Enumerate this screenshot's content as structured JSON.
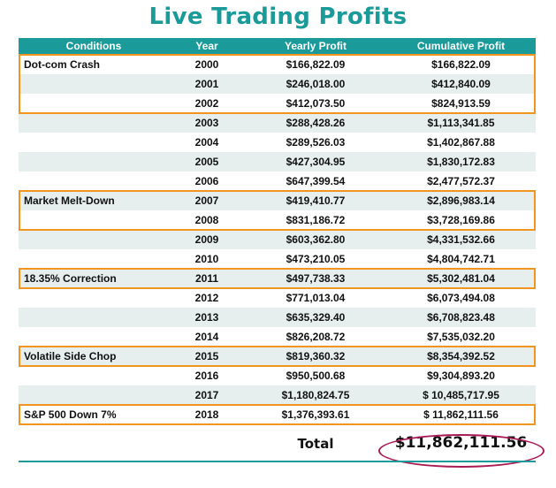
{
  "title": "Live Trading Profits",
  "columns": [
    "Conditions",
    "Year",
    "Yearly Profit",
    "Cumulative Profit"
  ],
  "rows": [
    {
      "condition": "Dot-com Crash",
      "year": "2000",
      "yearly": "$166,822.09",
      "cumulative": "$166,822.09"
    },
    {
      "condition": "",
      "year": "2001",
      "yearly": "$246,018.00",
      "cumulative": "$412,840.09"
    },
    {
      "condition": "",
      "year": "2002",
      "yearly": "$412,073.50",
      "cumulative": "$824,913.59"
    },
    {
      "condition": "",
      "year": "2003",
      "yearly": "$288,428.26",
      "cumulative": "$1,113,341.85"
    },
    {
      "condition": "",
      "year": "2004",
      "yearly": "$289,526.03",
      "cumulative": "$1,402,867.88"
    },
    {
      "condition": "",
      "year": "2005",
      "yearly": "$427,304.95",
      "cumulative": "$1,830,172.83"
    },
    {
      "condition": "",
      "year": "2006",
      "yearly": "$647,399.54",
      "cumulative": "$2,477,572.37"
    },
    {
      "condition": "Market Melt-Down",
      "year": "2007",
      "yearly": "$419,410.77",
      "cumulative": "$2,896,983.14"
    },
    {
      "condition": "",
      "year": "2008",
      "yearly": "$831,186.72",
      "cumulative": "$3,728,169.86"
    },
    {
      "condition": "",
      "year": "2009",
      "yearly": "$603,362.80",
      "cumulative": "$4,331,532.66"
    },
    {
      "condition": "",
      "year": "2010",
      "yearly": "$473,210.05",
      "cumulative": "$4,804,742.71"
    },
    {
      "condition": "18.35% Correction",
      "year": "2011",
      "yearly": "$497,738.33",
      "cumulative": "$5,302,481.04"
    },
    {
      "condition": "",
      "year": "2012",
      "yearly": "$771,013.04",
      "cumulative": "$6,073,494.08"
    },
    {
      "condition": "",
      "year": "2013",
      "yearly": "$635,329.40",
      "cumulative": "$6,708,823.48"
    },
    {
      "condition": "",
      "year": "2014",
      "yearly": "$826,208.72",
      "cumulative": "$7,535,032.20"
    },
    {
      "condition": "Volatile Side Chop",
      "year": "2015",
      "yearly": "$819,360.32",
      "cumulative": "$8,354,392.52"
    },
    {
      "condition": "",
      "year": "2016",
      "yearly": "$950,500.68",
      "cumulative": "$9,304,893.20"
    },
    {
      "condition": "",
      "year": "2017",
      "yearly": "$1,180,824.75",
      "cumulative": "$ 10,485,717.95"
    },
    {
      "condition": "S&P 500 Down 7%",
      "year": "2018",
      "yearly": "$1,376,393.61",
      "cumulative": "$ 11,862,111.56"
    }
  ],
  "highlight_groups": [
    [
      0,
      2
    ],
    [
      7,
      8
    ],
    [
      11,
      11
    ],
    [
      15,
      15
    ],
    [
      18,
      18
    ]
  ],
  "total": {
    "label": "Total",
    "value": "$11,862,111.56"
  },
  "colors": {
    "header": "#1a9a99",
    "highlight": "#f0951f",
    "oval": "#a81a55",
    "alt_row": "#e6eeee"
  }
}
